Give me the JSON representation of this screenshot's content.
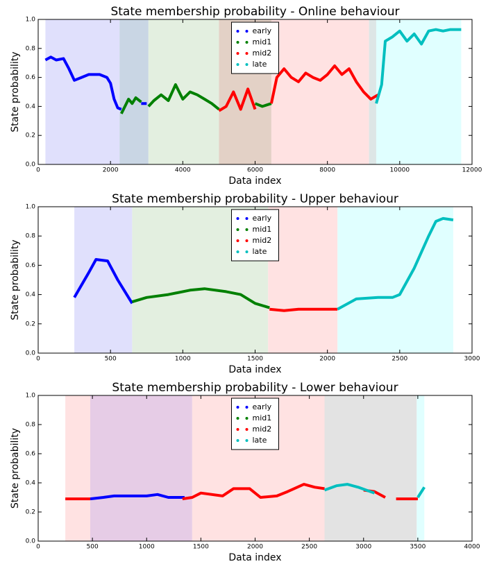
{
  "chart_data": [
    {
      "type": "line",
      "title": "State membership probability - Online behaviour",
      "xlabel": "Data index",
      "ylabel": "State probability",
      "xlim": [
        0,
        12000
      ],
      "xticks": [
        0,
        2000,
        4000,
        6000,
        8000,
        10000,
        12000
      ],
      "ylim": [
        0,
        1
      ],
      "yticks": [
        {
          "value": 0,
          "label": "0.0"
        },
        0.2,
        0.4,
        0.6,
        0.8,
        {
          "value": 1,
          "label": "1.0"
        }
      ],
      "legend": "upper center",
      "spans": [
        {
          "start": 200,
          "end": 2250,
          "color": "#e0e0fc"
        },
        {
          "start": 2250,
          "end": 3050,
          "color": "#c9d6e4"
        },
        {
          "start": 3050,
          "end": 5000,
          "color": "#e3efe0"
        },
        {
          "start": 5000,
          "end": 6450,
          "color": "#e3d1c6"
        },
        {
          "start": 6450,
          "end": 9150,
          "color": "#ffe2e2"
        },
        {
          "start": 9150,
          "end": 9350,
          "color": "#dde6e6"
        },
        {
          "start": 9350,
          "end": 11700,
          "color": "#e0ffff"
        }
      ],
      "series": [
        {
          "name": "early",
          "color": "#0000ff",
          "x": [
            200,
            350,
            500,
            700,
            850,
            1000,
            1200,
            1400,
            1700,
            1900,
            2000,
            2100,
            2200,
            2300,
            2600,
            2850,
            3000
          ],
          "values": [
            0.72,
            0.74,
            0.72,
            0.73,
            0.66,
            0.58,
            0.6,
            0.62,
            0.62,
            0.6,
            0.56,
            0.45,
            0.39,
            0.38,
            null,
            0.42,
            0.42
          ]
        },
        {
          "name": "mid1",
          "color": "#008000",
          "x": [
            2300,
            2400,
            2500,
            2600,
            2700,
            2850,
            2950,
            3050,
            3200,
            3400,
            3600,
            3800,
            4000,
            4200,
            4400,
            4600,
            4800,
            5000,
            5500,
            6000,
            6200,
            6450
          ],
          "values": [
            0.35,
            0.4,
            0.45,
            0.42,
            0.46,
            0.43,
            null,
            0.4,
            0.44,
            0.48,
            0.44,
            0.55,
            0.45,
            0.5,
            0.48,
            0.45,
            0.42,
            0.38,
            null,
            0.42,
            0.4,
            0.42
          ]
        },
        {
          "name": "mid2",
          "color": "#ff0000",
          "x": [
            5000,
            5200,
            5400,
            5600,
            5800,
            6000,
            6200,
            6450,
            6600,
            6800,
            7000,
            7200,
            7400,
            7600,
            7800,
            8000,
            8200,
            8400,
            8600,
            8800,
            9000,
            9200,
            9400
          ],
          "values": [
            0.37,
            0.4,
            0.5,
            0.38,
            0.52,
            0.38,
            null,
            0.42,
            0.6,
            0.66,
            0.6,
            0.57,
            0.63,
            0.6,
            0.58,
            0.62,
            0.68,
            0.62,
            0.66,
            0.57,
            0.5,
            0.45,
            0.48
          ]
        },
        {
          "name": "late",
          "color": "#00bfbf",
          "x": [
            9350,
            9500,
            9600,
            9800,
            10000,
            10200,
            10400,
            10600,
            10800,
            11000,
            11200,
            11400,
            11700
          ],
          "values": [
            0.42,
            0.55,
            0.85,
            0.88,
            0.92,
            0.85,
            0.9,
            0.83,
            0.92,
            0.93,
            0.92,
            0.93,
            0.93
          ]
        }
      ]
    },
    {
      "type": "line",
      "title": "State membership probability - Upper behaviour",
      "xlabel": "Data index",
      "ylabel": "State probability",
      "xlim": [
        0,
        3000
      ],
      "xticks": [
        0,
        500,
        1000,
        1500,
        2000,
        2500,
        3000
      ],
      "ylim": [
        0,
        1
      ],
      "yticks": [
        {
          "value": 0,
          "label": "0.0"
        },
        0.2,
        0.4,
        0.6,
        0.8,
        {
          "value": 1,
          "label": "1.0"
        }
      ],
      "legend": "upper center",
      "spans": [
        {
          "start": 250,
          "end": 650,
          "color": "#e0e0fc"
        },
        {
          "start": 650,
          "end": 1590,
          "color": "#e3efe0"
        },
        {
          "start": 1590,
          "end": 2070,
          "color": "#ffe2e2"
        },
        {
          "start": 2070,
          "end": 2870,
          "color": "#e0ffff"
        }
      ],
      "series": [
        {
          "name": "early",
          "color": "#0000ff",
          "x": [
            250,
            350,
            400,
            480,
            550,
            650
          ],
          "values": [
            0.38,
            0.55,
            0.64,
            0.63,
            0.5,
            0.34
          ]
        },
        {
          "name": "mid1",
          "color": "#008000",
          "x": [
            650,
            750,
            900,
            1050,
            1150,
            1300,
            1400,
            1500,
            1600
          ],
          "values": [
            0.35,
            0.38,
            0.4,
            0.43,
            0.44,
            0.42,
            0.4,
            0.34,
            0.31
          ]
        },
        {
          "name": "mid2",
          "color": "#ff0000",
          "x": [
            1600,
            1700,
            1800,
            2070
          ],
          "values": [
            0.3,
            0.29,
            0.3,
            0.3
          ]
        },
        {
          "name": "late",
          "color": "#00bfbf",
          "x": [
            2070,
            2200,
            2350,
            2450,
            2500,
            2600,
            2700,
            2750,
            2800,
            2870
          ],
          "values": [
            0.3,
            0.37,
            0.38,
            0.38,
            0.4,
            0.58,
            0.8,
            0.9,
            0.92,
            0.91
          ]
        }
      ]
    },
    {
      "type": "line",
      "title": "State membership probability - Lower behaviour",
      "xlabel": "Data index",
      "ylabel": "State probability",
      "xlim": [
        0,
        4000
      ],
      "xticks": [
        0,
        500,
        1000,
        1500,
        2000,
        2500,
        3000,
        3500,
        4000
      ],
      "ylim": [
        0,
        1
      ],
      "yticks": [
        {
          "value": 0,
          "label": "0.0"
        },
        0.2,
        0.4,
        0.6,
        0.8,
        {
          "value": 1,
          "label": "1.0"
        }
      ],
      "legend": "upper center",
      "spans": [
        {
          "start": 250,
          "end": 480,
          "color": "#ffe2e2"
        },
        {
          "start": 480,
          "end": 1420,
          "color": "#e6cce6"
        },
        {
          "start": 1420,
          "end": 2640,
          "color": "#ffe2e2"
        },
        {
          "start": 2640,
          "end": 3490,
          "color": "#e3e3e3"
        },
        {
          "start": 3490,
          "end": 3560,
          "color": "#e0ffff"
        }
      ],
      "series": [
        {
          "name": "early",
          "color": "#0000ff",
          "x": [
            480,
            600,
            700,
            1000,
            1100,
            1200,
            1350
          ],
          "values": [
            0.29,
            0.3,
            0.31,
            0.31,
            0.32,
            0.3,
            0.3
          ]
        },
        {
          "name": "mid1",
          "color": "#008000",
          "x": [],
          "values": []
        },
        {
          "name": "mid2",
          "color": "#ff0000",
          "x": [
            250,
            480,
            900,
            1330,
            1420,
            1500,
            1700,
            1800,
            1950,
            2050,
            2200,
            2300,
            2450,
            2550,
            2640,
            2800,
            3000,
            3100,
            3200,
            3250,
            3300,
            3500
          ],
          "values": [
            0.29,
            0.29,
            null,
            0.29,
            0.3,
            0.33,
            0.31,
            0.36,
            0.36,
            0.3,
            0.31,
            0.34,
            0.39,
            0.37,
            0.36,
            null,
            0.35,
            0.34,
            0.3,
            null,
            0.29,
            0.29
          ]
        },
        {
          "name": "late",
          "color": "#00bfbf",
          "x": [
            2640,
            2750,
            2850,
            2950,
            3100,
            3300,
            3500,
            3560
          ],
          "values": [
            0.35,
            0.38,
            0.39,
            0.37,
            0.33,
            null,
            0.3,
            0.37
          ]
        }
      ]
    }
  ]
}
